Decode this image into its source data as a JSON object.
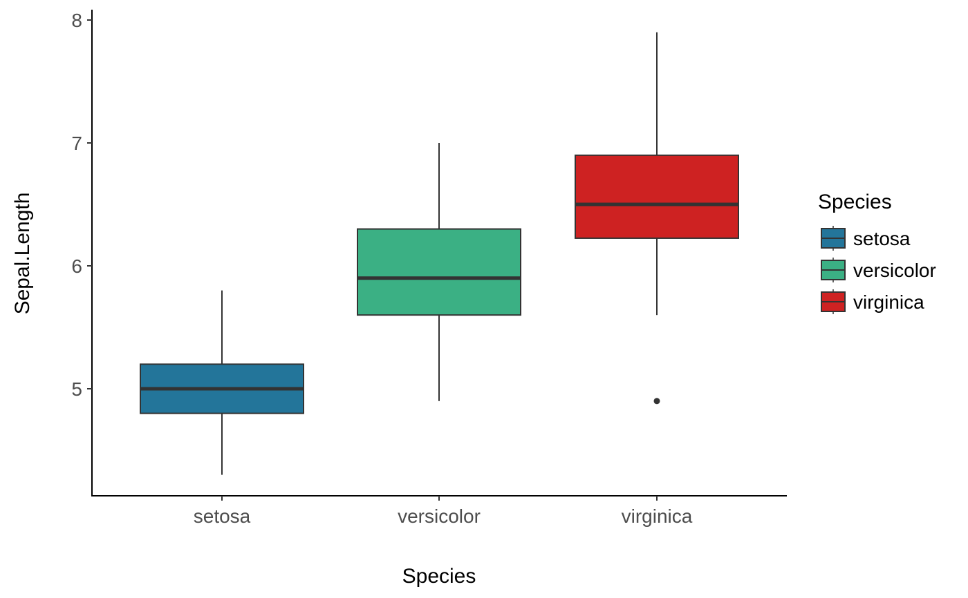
{
  "chart_data": {
    "type": "boxplot",
    "xlabel": "Species",
    "ylabel": "Sepal.Length",
    "categories": [
      "setosa",
      "versicolor",
      "virginica"
    ],
    "y_ticks": [
      "5",
      "6",
      "7",
      "8"
    ],
    "y_tick_values": [
      5,
      6,
      7,
      8
    ],
    "ylim": [
      4.3,
      7.9
    ],
    "grid": false,
    "legend": {
      "title": "Species",
      "position": "right",
      "entries": [
        "setosa",
        "versicolor",
        "virginica"
      ]
    },
    "colors": [
      "#23759a",
      "#3bb084",
      "#ce2222"
    ],
    "boxes": [
      {
        "category": "setosa",
        "min": 4.3,
        "q1": 4.8,
        "median": 5.0,
        "q3": 5.2,
        "max": 5.8,
        "outliers": []
      },
      {
        "category": "versicolor",
        "min": 4.9,
        "q1": 5.6,
        "median": 5.9,
        "q3": 6.3,
        "max": 7.0,
        "outliers": []
      },
      {
        "category": "virginica",
        "min": 5.6,
        "q1": 6.225,
        "median": 6.5,
        "q3": 6.9,
        "max": 7.9,
        "outliers": [
          4.9
        ]
      }
    ]
  }
}
